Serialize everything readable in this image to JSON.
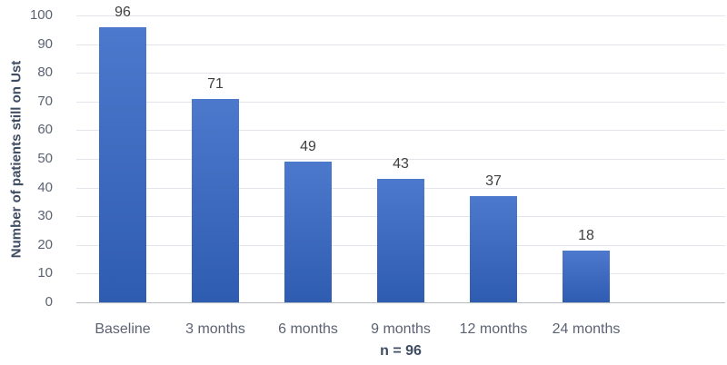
{
  "chart_data": {
    "type": "bar",
    "title": "",
    "categories": [
      "Baseline",
      "3 months",
      "6 months",
      "9 months",
      "12 months",
      "24 months"
    ],
    "values": [
      96,
      71,
      49,
      43,
      37,
      18
    ],
    "data_labels": [
      "96",
      "71",
      "49",
      "43",
      "37",
      "18"
    ],
    "xlabel": "n = 96",
    "ylabel": "Number of patients still on Ust",
    "ylim": [
      0,
      100
    ],
    "yticks": [
      0,
      10,
      20,
      30,
      40,
      50,
      60,
      70,
      80,
      90,
      100
    ],
    "grid": "horizontal-only",
    "legend": "none",
    "extra_empty_category_slots": 1,
    "colors": {
      "bar_gradient_top": "#4D79CD",
      "bar_gradient_bottom": "#2E5CB0",
      "gridline": "#E4E4EB",
      "axis_line": "#B6BAC1",
      "tick_label": "#5B6372",
      "category_label": "#5B6372",
      "value_label": "#404040",
      "axis_title": "#3F4D63",
      "background": "#FFFFFF"
    }
  }
}
